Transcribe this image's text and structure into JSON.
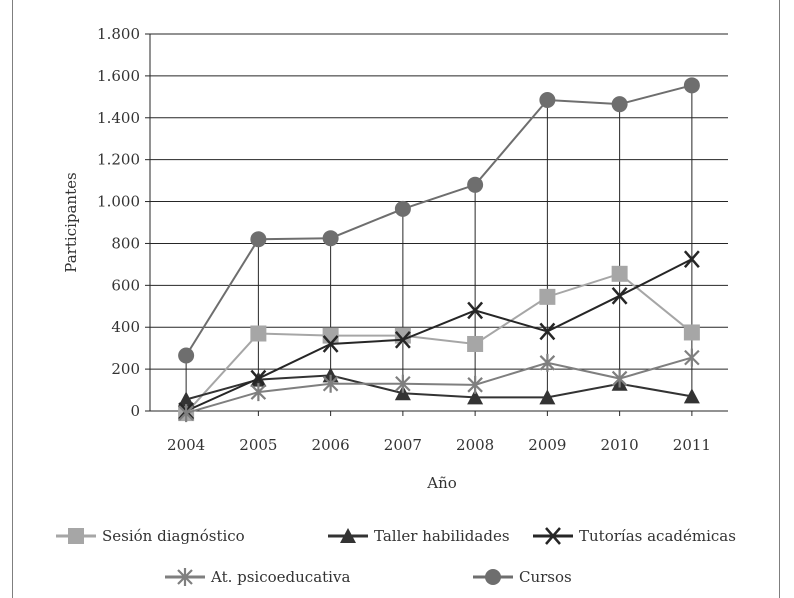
{
  "chart_data": {
    "type": "line",
    "xlabel": "Año",
    "ylabel": "Participantes",
    "categories": [
      "2004",
      "2005",
      "2006",
      "2007",
      "2008",
      "2009",
      "2010",
      "2011"
    ],
    "ylim": [
      0,
      1800
    ],
    "yticks": [
      0,
      200,
      400,
      600,
      800,
      1000,
      1200,
      1400,
      1600,
      1800
    ],
    "ytick_labels": [
      "0",
      "200",
      "400",
      "600",
      "800",
      "1.000",
      "1.200",
      "1.400",
      "1.600",
      "1.800"
    ],
    "grid": "horizontal",
    "drop_lines": true,
    "legend_position": "bottom",
    "series": [
      {
        "name": "Sesión diagnóstico",
        "values": [
          -10,
          370,
          360,
          360,
          320,
          545,
          655,
          375
        ],
        "color": "#a6a6a6",
        "marker": "square"
      },
      {
        "name": "Taller habilidades",
        "values": [
          55,
          150,
          170,
          85,
          65,
          65,
          130,
          70
        ],
        "color": "#333333",
        "marker": "triangle"
      },
      {
        "name": "Tutorías académicas",
        "values": [
          0,
          155,
          320,
          340,
          480,
          380,
          550,
          725
        ],
        "color": "#262626",
        "marker": "x"
      },
      {
        "name": "At. psicoeducativa",
        "values": [
          -10,
          90,
          130,
          130,
          125,
          230,
          155,
          255
        ],
        "color": "#7f7f7f",
        "marker": "asterisk"
      },
      {
        "name": "Cursos",
        "values": [
          265,
          820,
          825,
          965,
          1080,
          1485,
          1465,
          1555
        ],
        "color": "#6e6e6e",
        "marker": "circle"
      }
    ]
  }
}
